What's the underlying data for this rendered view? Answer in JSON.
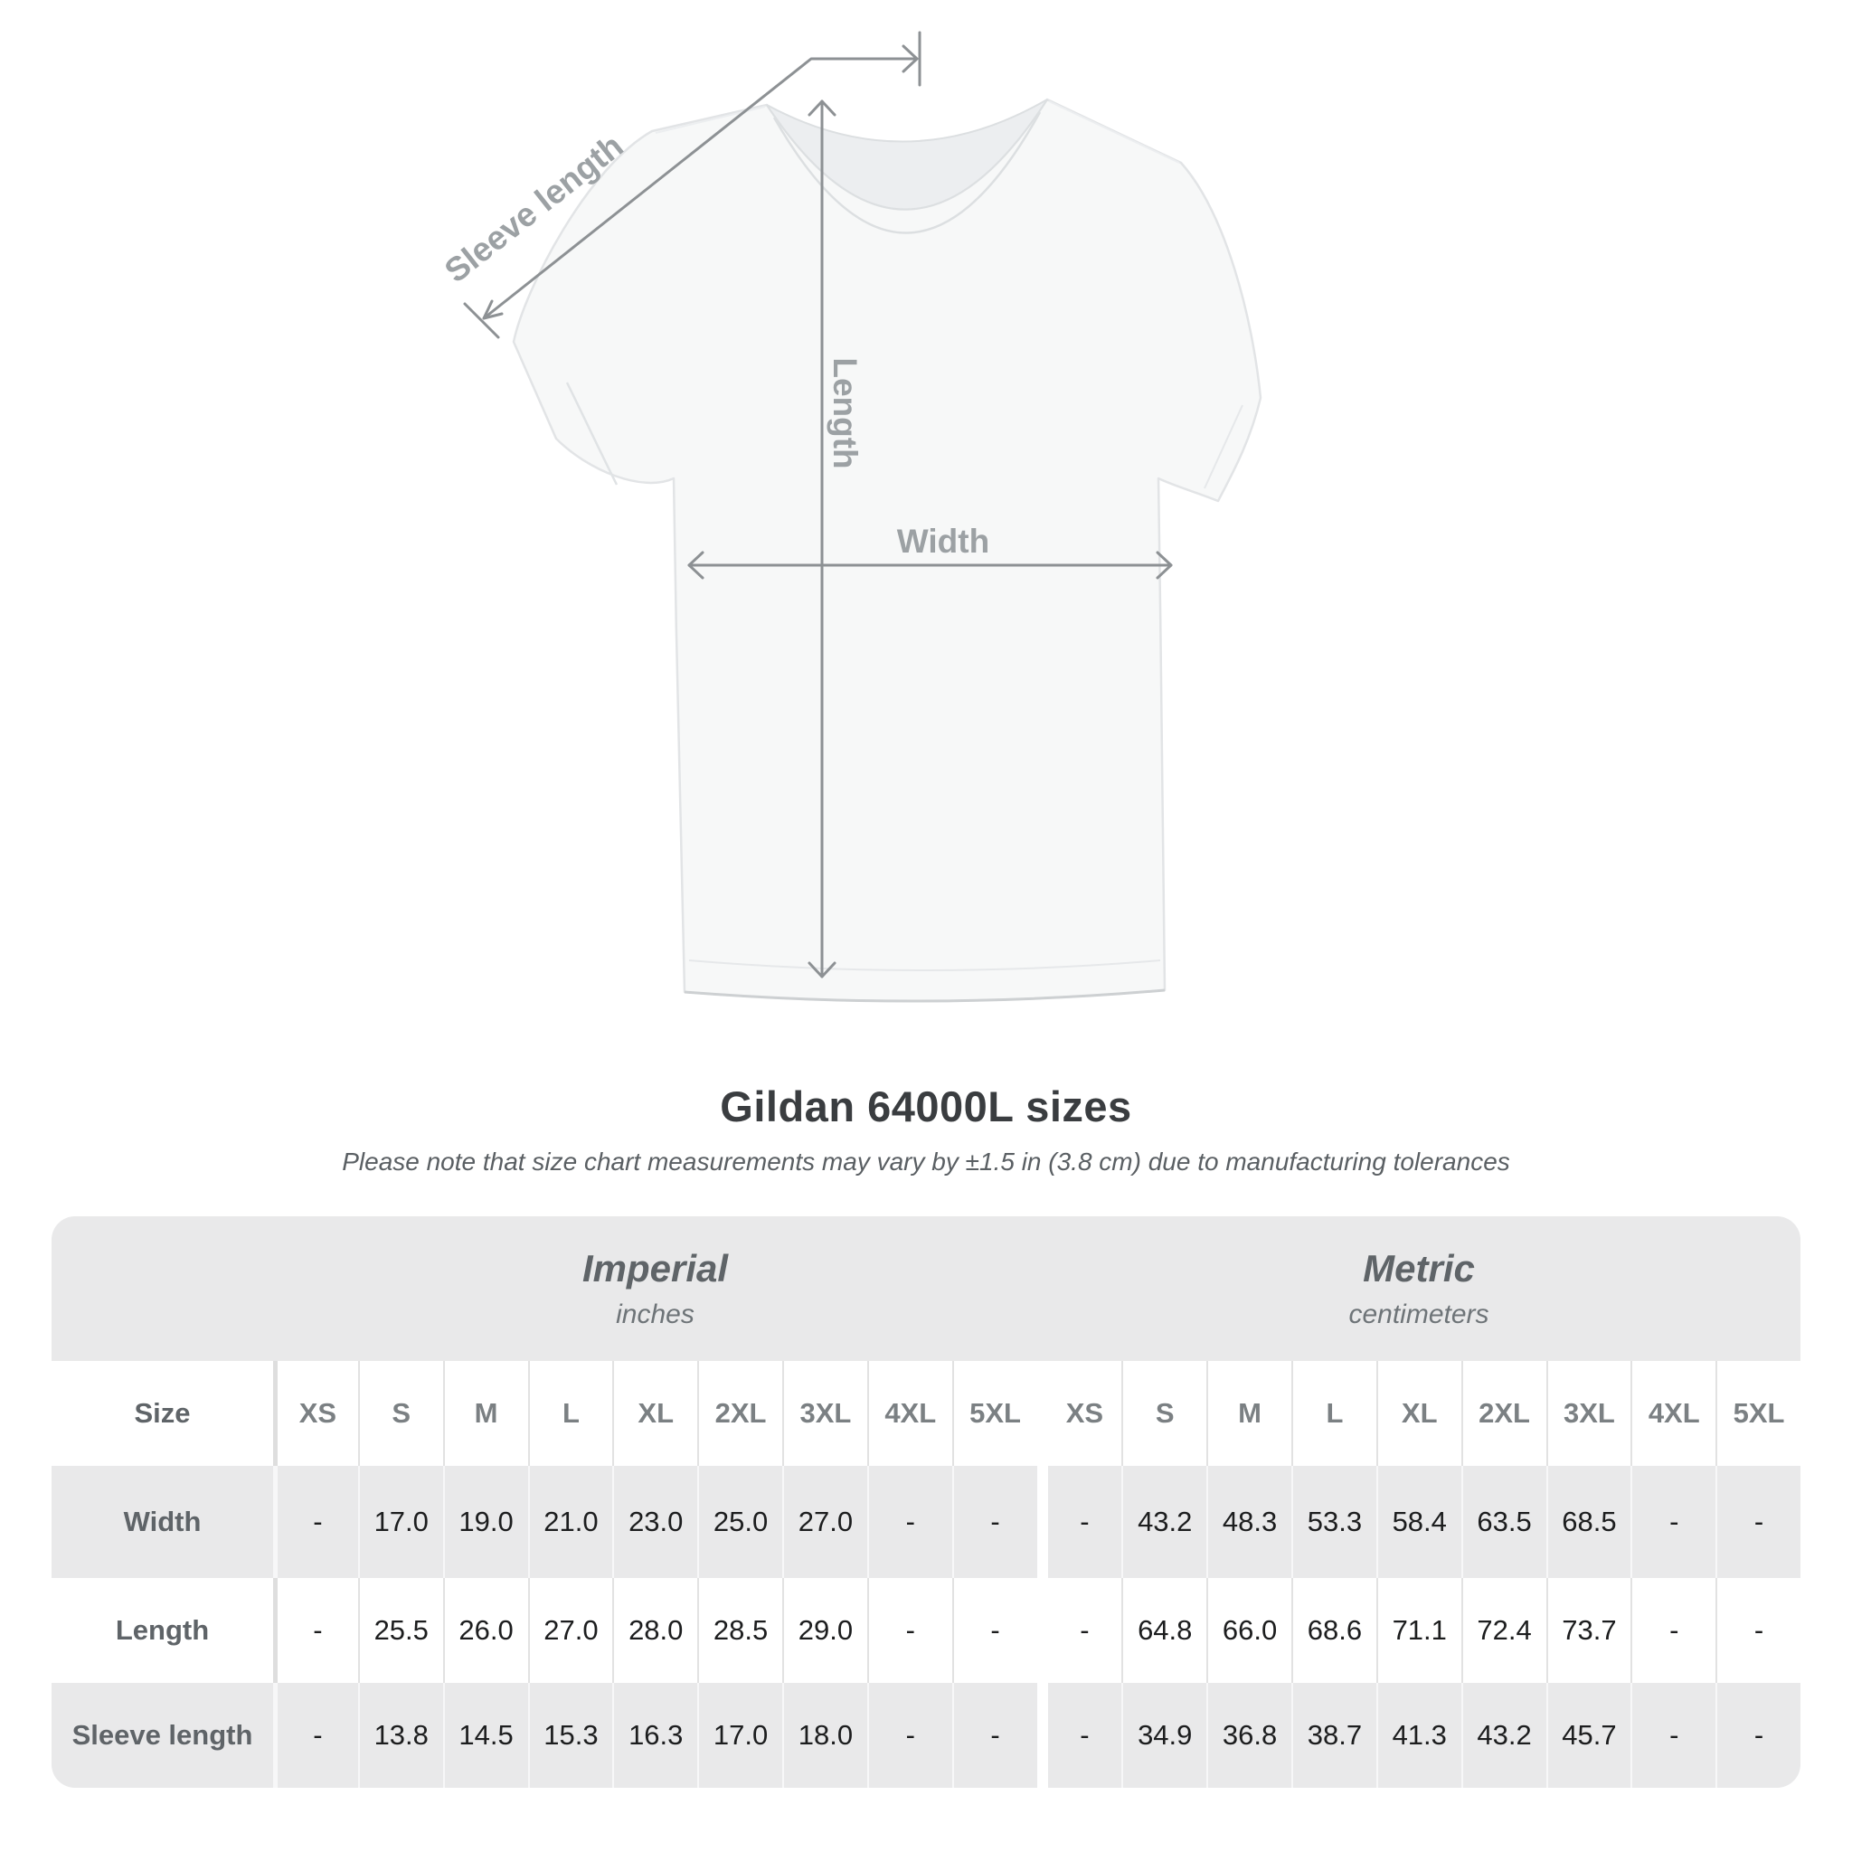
{
  "header": {
    "title": "Gildan 64000L sizes",
    "subtitle": "Please note that size chart measurements may vary by ±1.5 in (3.8 cm) due to manufacturing tolerances"
  },
  "diagram": {
    "sleeve_label": "Sleeve length",
    "length_label": "Length",
    "width_label": "Width"
  },
  "chart_data": {
    "type": "table",
    "title": "Gildan 64000L sizes",
    "corner_label": "Size",
    "groups": [
      {
        "name": "Imperial",
        "unit": "inches",
        "columns": [
          "XS",
          "S",
          "M",
          "L",
          "XL",
          "2XL",
          "3XL",
          "4XL",
          "5XL"
        ]
      },
      {
        "name": "Metric",
        "unit": "centimeters",
        "columns": [
          "XS",
          "S",
          "M",
          "L",
          "XL",
          "2XL",
          "3XL",
          "4XL",
          "5XL"
        ]
      }
    ],
    "rows": [
      {
        "label": "Width",
        "imperial": [
          "-",
          "17.0",
          "19.0",
          "21.0",
          "23.0",
          "25.0",
          "27.0",
          "-",
          "-"
        ],
        "metric": [
          "-",
          "43.2",
          "48.3",
          "53.3",
          "58.4",
          "63.5",
          "68.5",
          "-",
          "-"
        ]
      },
      {
        "label": "Length",
        "imperial": [
          "-",
          "25.5",
          "26.0",
          "27.0",
          "28.0",
          "28.5",
          "29.0",
          "-",
          "-"
        ],
        "metric": [
          "-",
          "64.8",
          "66.0",
          "68.6",
          "71.1",
          "72.4",
          "73.7",
          "-",
          "-"
        ]
      },
      {
        "label": "Sleeve length",
        "imperial": [
          "-",
          "13.8",
          "14.5",
          "15.3",
          "16.3",
          "17.0",
          "18.0",
          "-",
          "-"
        ],
        "metric": [
          "-",
          "34.9",
          "36.8",
          "38.7",
          "41.3",
          "43.2",
          "45.7",
          "-",
          "-"
        ]
      }
    ]
  },
  "colors": {
    "stripe_grey": "#e9e9ea",
    "title_text": "#3a3d40",
    "subtitle_text": "#5a5f63",
    "row_label_text": "#5f6468",
    "column_header_text": "#7b8083",
    "value_text": "#1c1d1e",
    "measure_line": "#8d9194",
    "measure_label": "#9ca1a4",
    "shirt_fill": "#f7f8f8",
    "shirt_outline": "#e2e4e6"
  }
}
